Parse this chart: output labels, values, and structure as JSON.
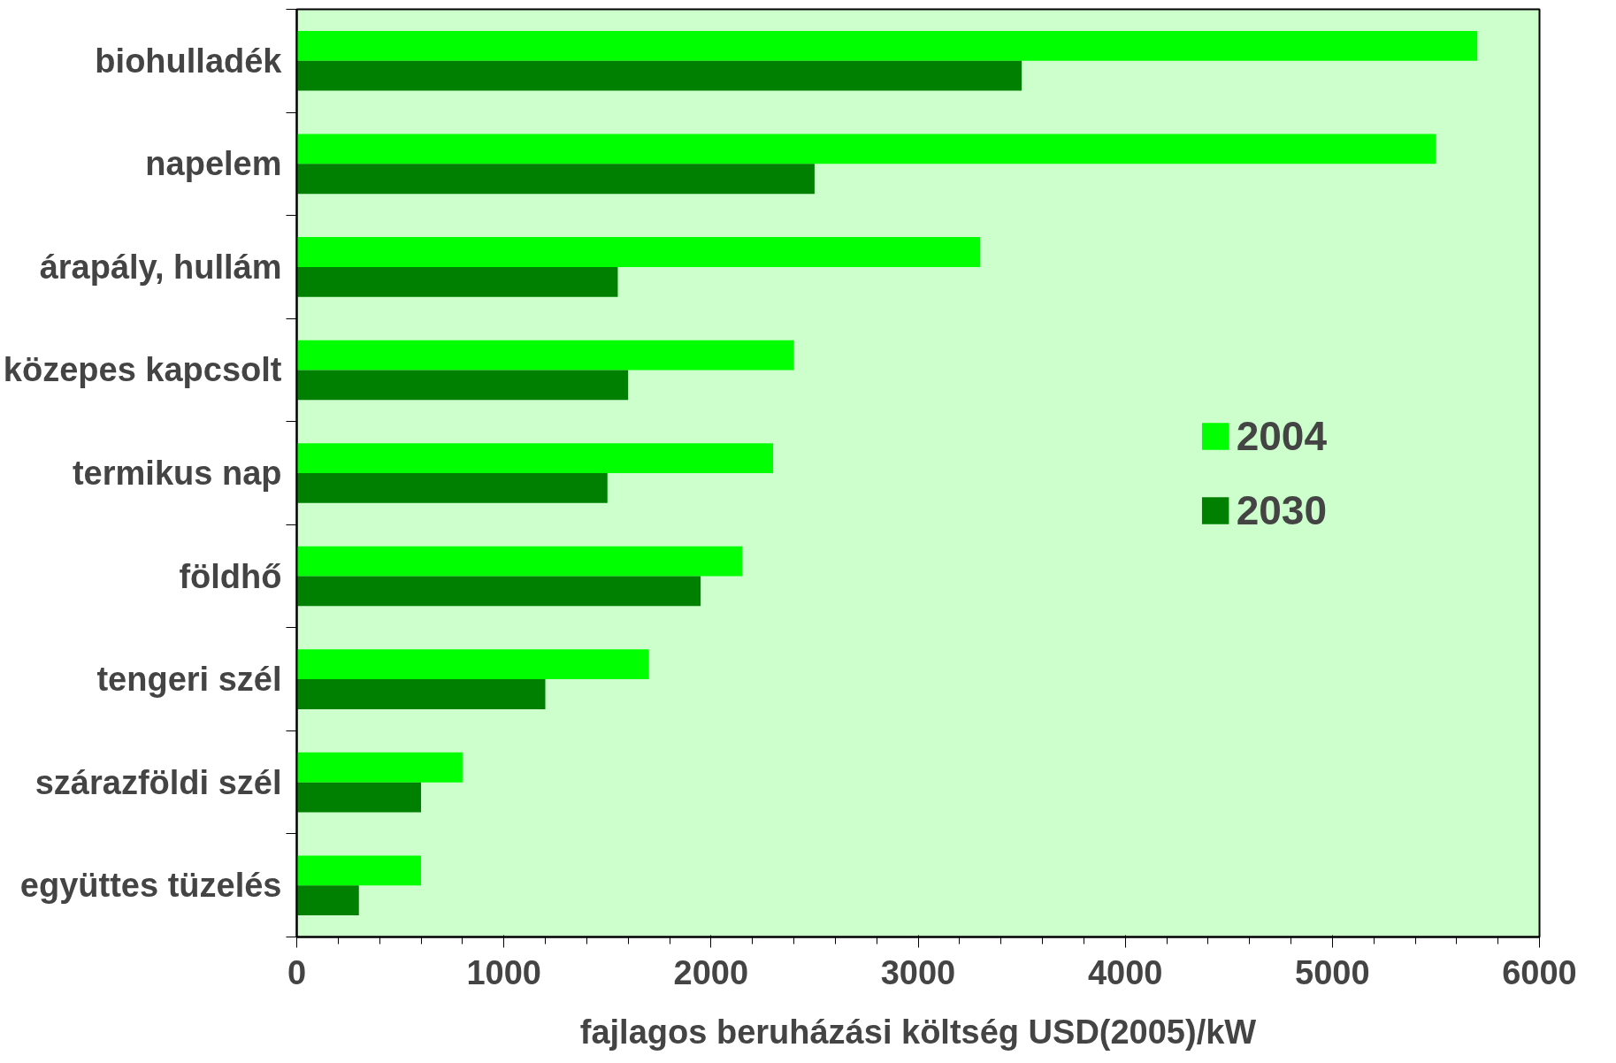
{
  "chart_data": {
    "type": "bar",
    "orientation": "horizontal",
    "xlabel": "fajlagos beruházási költség USD(2005)/kW",
    "categories": [
      "biohulladék",
      "napelem",
      "árapály, hullám",
      "közepes kapcsolt",
      "termikus nap",
      "földhő",
      "tengeri szél",
      "szárazföldi szél",
      "együttes tüzelés"
    ],
    "series": [
      {
        "name": "2004",
        "color": "#00ff00",
        "values": [
          5700,
          5500,
          3300,
          2400,
          2300,
          2150,
          1700,
          800,
          600
        ]
      },
      {
        "name": "2030",
        "color": "#008000",
        "values": [
          3500,
          2500,
          1550,
          1600,
          1500,
          1950,
          1200,
          600,
          300
        ]
      }
    ],
    "xlim": [
      0,
      6000
    ],
    "xticks": [
      0,
      1000,
      2000,
      3000,
      4000,
      5000,
      6000
    ],
    "grid": false,
    "legend": "right"
  }
}
